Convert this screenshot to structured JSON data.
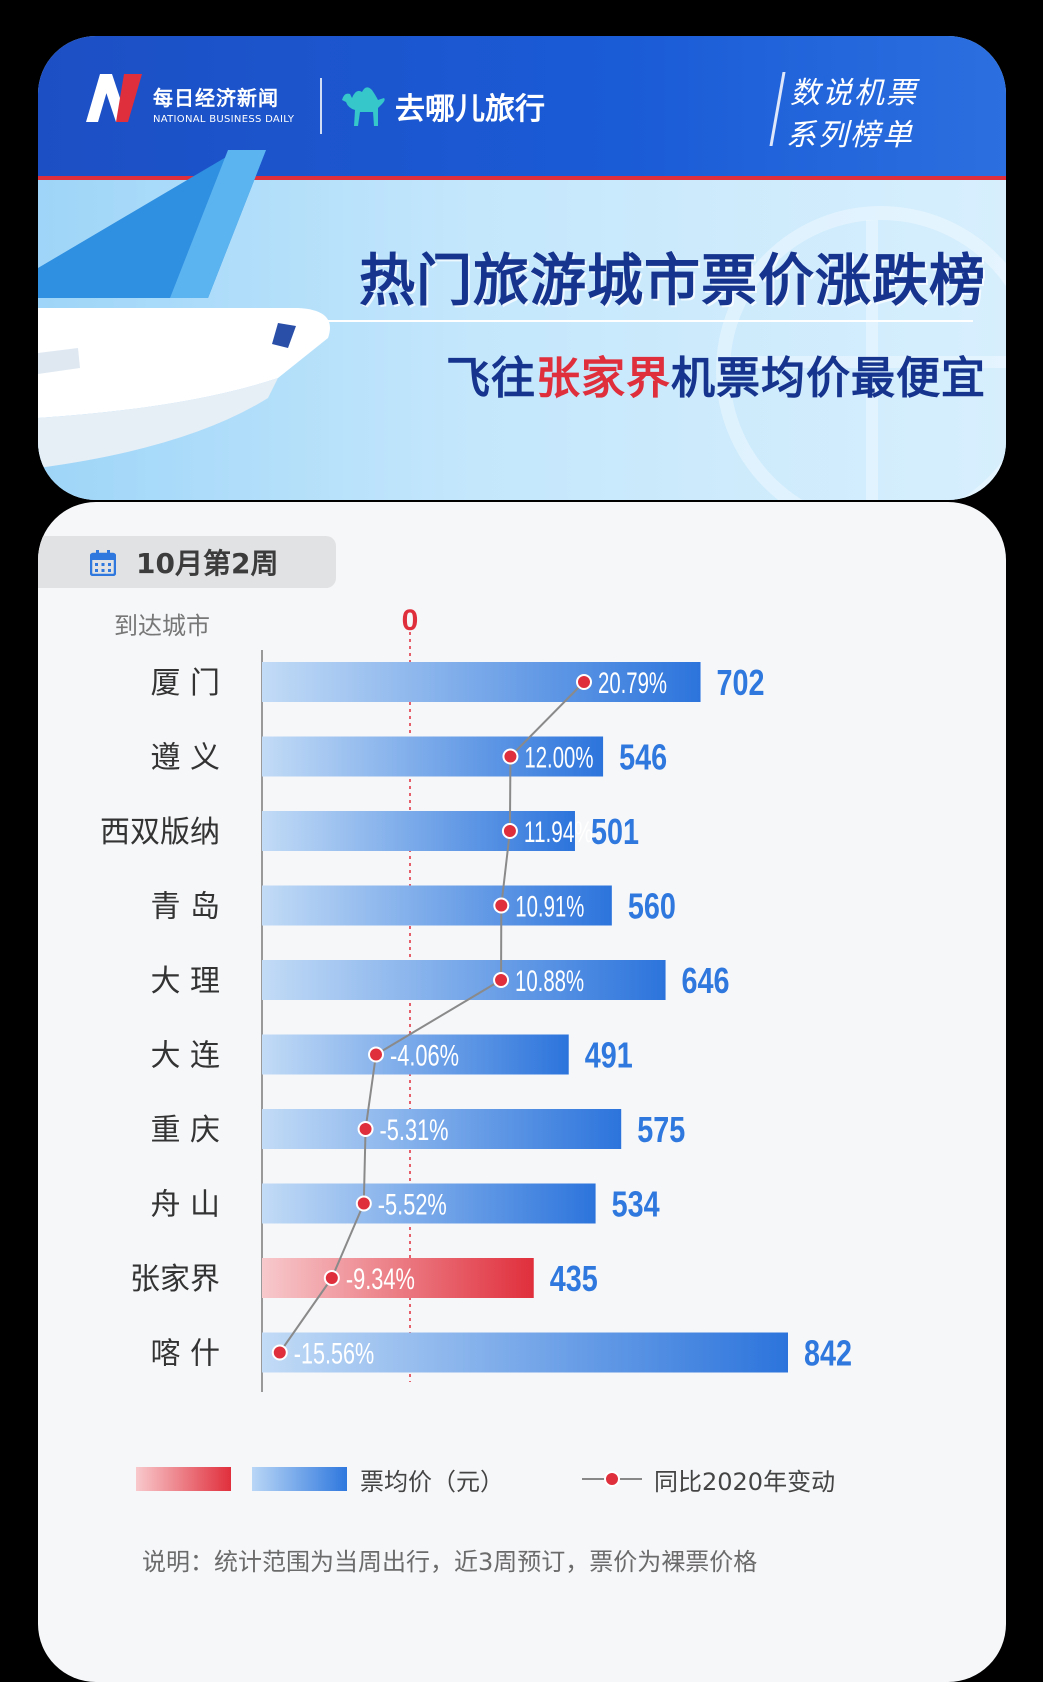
{
  "header": {
    "brand_cn": "每日经济新闻",
    "brand_en": "NATIONAL BUSINESS DAILY",
    "partner": "去哪儿旅行",
    "series_line1": "数说机票",
    "series_line2": "系列榜单",
    "title": "热门旅游城市票价涨跌榜",
    "subtitle_prefix": "飞往",
    "subtitle_highlight": "张家界",
    "subtitle_suffix": "机票均价最便宜"
  },
  "week_label": "10月第2周",
  "axis_header": "到达城市",
  "zero_label": "0",
  "legend": {
    "price": "票均价（元）",
    "yoy": "同比2020年变动"
  },
  "note": "说明：统计范围为当周出行，近3周预订，票价为裸票价格",
  "colors": {
    "accent_blue": "#2f78de",
    "light_blue": "#b9d6f6",
    "accent_red": "#e02f3c",
    "title_navy": "#16348d"
  },
  "chart_data": {
    "type": "bar",
    "categories": [
      "厦门",
      "遵义",
      "西双版纳",
      "青岛",
      "大理",
      "大连",
      "重庆",
      "舟山",
      "张家界",
      "喀什"
    ],
    "category_display": [
      "厦 门",
      "遵 义",
      "西双版纳",
      "青 岛",
      "大 理",
      "大 连",
      "重 庆",
      "舟 山",
      "张家界",
      "喀 什"
    ],
    "series": [
      {
        "name": "票均价（元）",
        "values": [
          702,
          546,
          501,
          560,
          646,
          491,
          575,
          534,
          435,
          842
        ]
      },
      {
        "name": "同比2020年变动",
        "values": [
          20.79,
          12.0,
          11.94,
          10.91,
          10.88,
          -4.06,
          -5.31,
          -5.52,
          -9.34,
          -15.56
        ],
        "labels": [
          "20.79%",
          "12.00%",
          "11.94%",
          "10.91%",
          "10.88%",
          "-4.06%",
          "-5.31%",
          "-5.52%",
          "-9.34%",
          "-15.56%"
        ]
      }
    ],
    "highlight_category": "张家界",
    "xlim_price": [
      0,
      842
    ],
    "xlim_yoy": [
      -15.56,
      20.79
    ]
  }
}
